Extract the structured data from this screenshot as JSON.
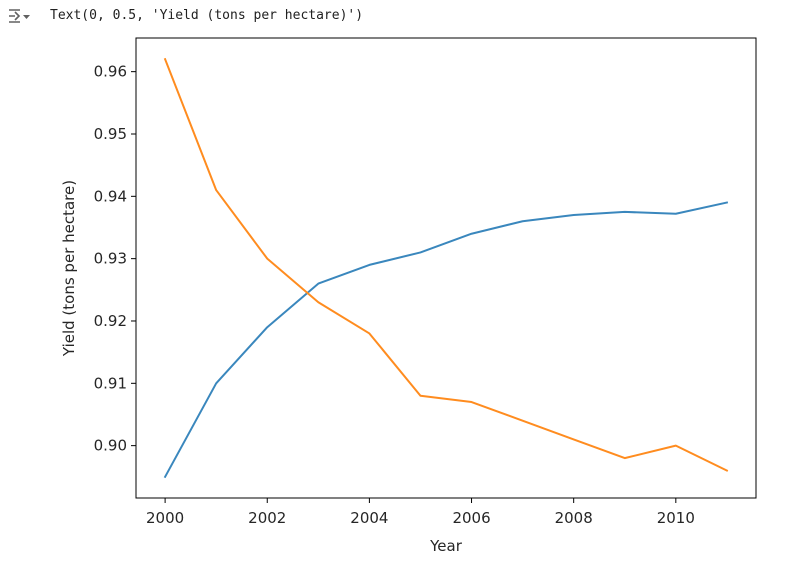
{
  "output": {
    "icon": "output-collapse-icon",
    "text": "Text(0, 0.5, 'Yield (tons per hectare)')"
  },
  "chart_data": {
    "type": "line",
    "title": "",
    "xlabel": "Year",
    "ylabel": "Yield (tons per hectare)",
    "xlim": [
      1999.43,
      2011.57
    ],
    "ylim": [
      0.8916,
      0.9654
    ],
    "xticks": [
      2000,
      2002,
      2004,
      2006,
      2008,
      2010
    ],
    "yticks": [
      0.9,
      0.91,
      0.92,
      0.93,
      0.94,
      0.95,
      0.96
    ],
    "ytick_labels": [
      "0.90",
      "0.91",
      "0.92",
      "0.93",
      "0.94",
      "0.95",
      "0.96"
    ],
    "grid": false,
    "legend": "none",
    "x": [
      2000,
      2001,
      2002,
      2003,
      2004,
      2005,
      2006,
      2007,
      2008,
      2009,
      2010,
      2011
    ],
    "series": [
      {
        "color": "#3a87bd",
        "values": [
          0.895,
          0.91,
          0.919,
          0.926,
          0.929,
          0.931,
          0.934,
          0.936,
          0.937,
          0.9375,
          0.9372,
          0.939
        ]
      },
      {
        "color": "#ff8c1f",
        "values": [
          0.962,
          0.941,
          0.93,
          0.923,
          0.918,
          0.908,
          0.907,
          0.904,
          0.901,
          0.898,
          0.9,
          0.896
        ]
      }
    ]
  }
}
